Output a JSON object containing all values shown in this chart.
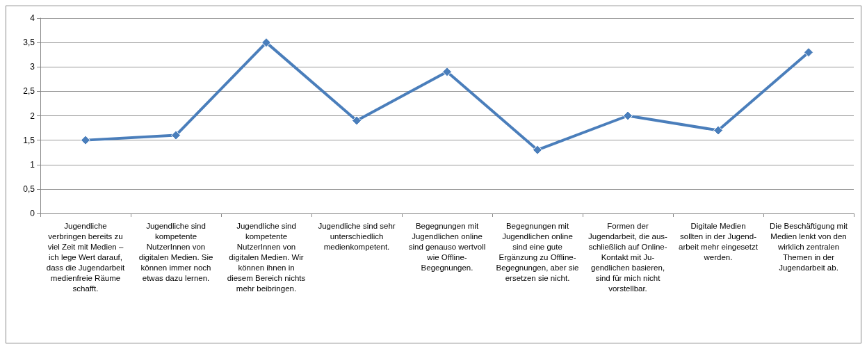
{
  "chart_data": {
    "type": "line",
    "categories": [
      "Jugendliche\nverbringen bereits zu\nviel Zeit mit Medien –\nich lege Wert darauf,\ndass die Jugendarbeit\nmedienfreie Räume\nschafft.",
      "Jugendliche sind\nkompetente\nNutzerInnen von\ndigitalen Medien. Sie\nkönnen immer noch\netwas dazu lernen.",
      "Jugendliche sind\nkompetente\nNutzerInnen von\ndigitalen Medien. Wir\nkönnen ihnen in\ndiesem Bereich nichts\nmehr beibringen.",
      "Jugendliche sind sehr\nunterschiedlich\nmedienkompetent.",
      "Begegnungen mit\nJugendlichen online\nsind genauso wertvoll\nwie Offline-\nBegegnungen.",
      "Begegnungen mit\nJugendlichen online\nsind eine gute\nErgänzung zu Offline-\nBegegnungen, aber sie\nersetzen sie nicht.",
      "Formen der\nJugendarbeit, die aus-\nschließlich auf Online-\nKontakt mit Ju-\ngendlichen basieren,\nsind für mich nicht\nvorstellbar.",
      "Digitale Medien\nsollten in der Jugend-\narbeit mehr eingesetzt\nwerden.",
      "Die Beschäftigung mit\nMedien lenkt von den\nwirklich zentralen\nThemen in der\nJugendarbeit ab."
    ],
    "series": [
      {
        "color": "#4a7ebb",
        "values": [
          1.5,
          1.6,
          3.5,
          1.9,
          2.9,
          1.3,
          2.0,
          1.7,
          3.3
        ]
      }
    ],
    "ylim": [
      0,
      4
    ],
    "yticks": [
      0,
      {
        "value": 0.5,
        "label": "0,5"
      },
      1,
      {
        "value": 1.5,
        "label": "1,5"
      },
      2,
      {
        "value": 2.5,
        "label": "2,5"
      },
      3,
      {
        "value": 3.5,
        "label": "3,5"
      },
      4
    ],
    "grid": "y",
    "marker": "diamond",
    "line_style": "solid"
  }
}
